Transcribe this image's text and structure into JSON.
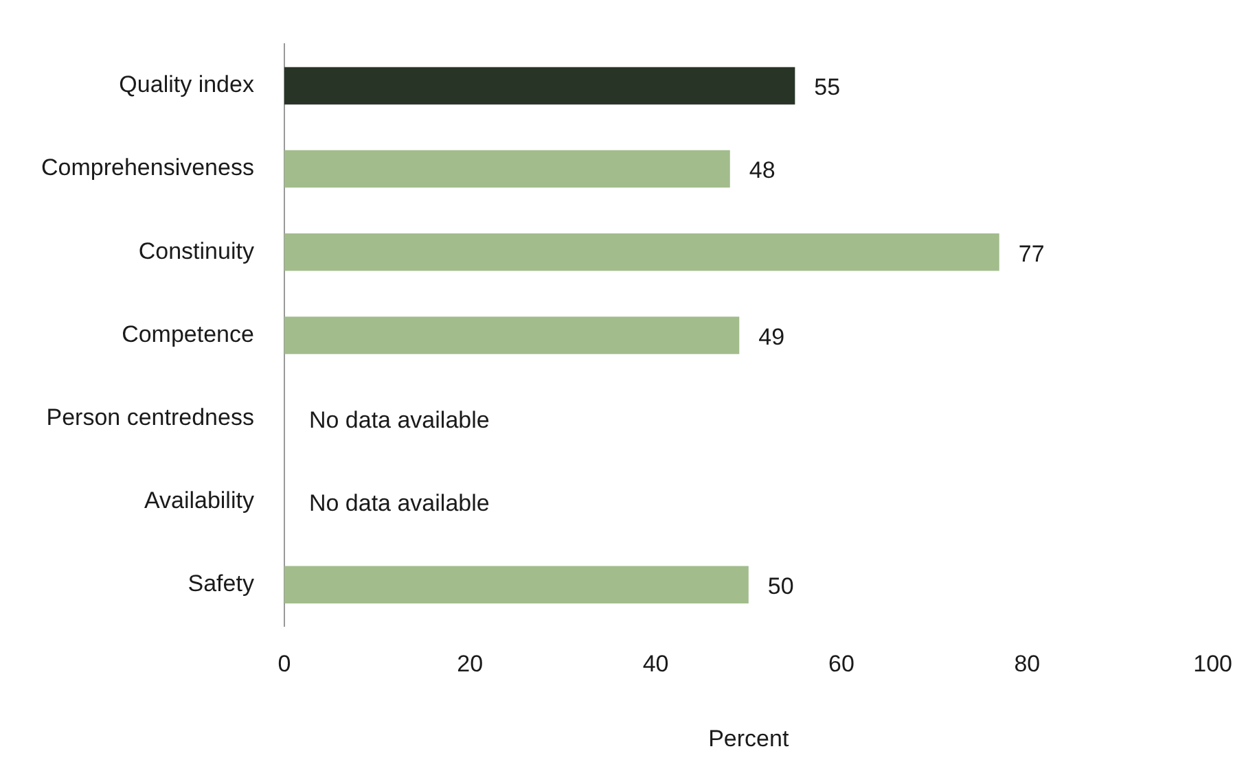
{
  "chart_data": {
    "type": "bar",
    "orientation": "horizontal",
    "categories": [
      "Quality index",
      "Comprehensiveness",
      "Constinuity",
      "Competence",
      "Person centredness",
      "Availability",
      "Safety"
    ],
    "values": [
      55,
      48,
      77,
      49,
      null,
      null,
      50
    ],
    "colors": [
      "#283526",
      "#a2bc8c",
      "#a2bc8c",
      "#a2bc8c",
      "#a2bc8c",
      "#a2bc8c",
      "#a2bc8c"
    ],
    "value_labels": [
      "55",
      "48",
      "77",
      "49",
      "No data available",
      "No data available",
      "50"
    ],
    "xlabel": "Percent",
    "xlim": [
      0,
      100
    ],
    "xticks": [
      0,
      20,
      40,
      60,
      80,
      100
    ],
    "grid": false,
    "legend": false
  }
}
